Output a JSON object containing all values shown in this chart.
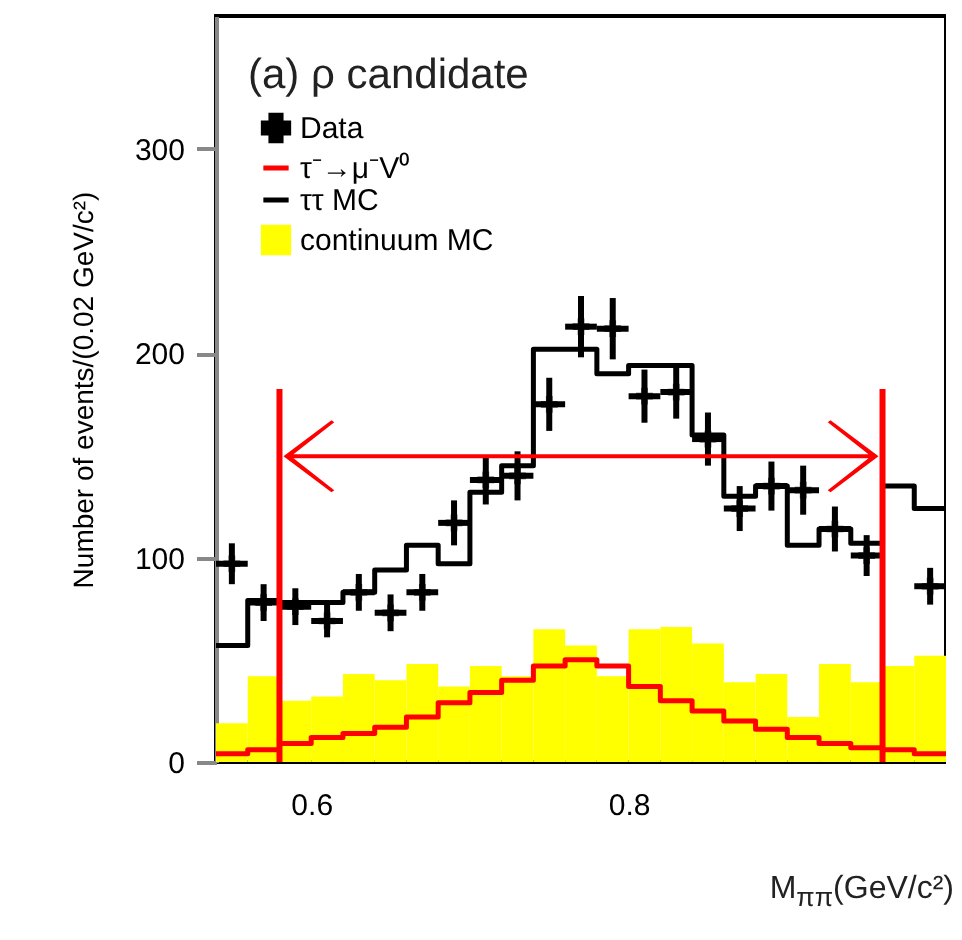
{
  "chart_data": {
    "type": "histogram",
    "title": "(a) ρ candidate",
    "xlabel": "M$_{ππ}$(GeV/c²)",
    "ylabel": "Number of events/(0.02 GeV/c²)",
    "bins": [
      0.54,
      0.56,
      0.58,
      0.6,
      0.62,
      0.64,
      0.66,
      0.68,
      0.7,
      0.72,
      0.74,
      0.76,
      0.78,
      0.8,
      0.82,
      0.84,
      0.86,
      0.88,
      0.9,
      0.92,
      0.94,
      0.96,
      0.98,
      1.0
    ],
    "xlim": [
      0.54,
      1.0
    ],
    "xticks": [
      0.6,
      0.8
    ],
    "ylim": [
      0,
      365
    ],
    "yticks": [
      0,
      100,
      200,
      300
    ],
    "legend": "top left",
    "series": [
      {
        "name": "Data",
        "type": "scatter",
        "color": "#000000",
        "marker": "cross",
        "x": [
          0.55,
          0.57,
          0.59,
          0.61,
          0.63,
          0.65,
          0.67,
          0.69,
          0.71,
          0.73,
          0.75,
          0.77,
          0.79,
          0.81,
          0.83,
          0.85,
          0.87,
          0.89,
          0.91,
          0.93,
          0.95,
          0.97,
          0.99
        ],
        "values": [
          97,
          78,
          76,
          69,
          83,
          73,
          83,
          117,
          138,
          140,
          175,
          213,
          212,
          179,
          181,
          158,
          124,
          135,
          133,
          114,
          101,
          null,
          86
        ],
        "errors": [
          10,
          9,
          9,
          8,
          9,
          9,
          9,
          11,
          12,
          12,
          13,
          15,
          15,
          13,
          13,
          13,
          11,
          12,
          12,
          11,
          10,
          null,
          9
        ],
        "xerrors": [
          0.01,
          0.01,
          0.01,
          0.01,
          0.01,
          0.01,
          0.01,
          0.01,
          0.01,
          0.01,
          0.01,
          0.01,
          0.01,
          0.01,
          0.01,
          0.01,
          0.01,
          0.01,
          0.01,
          0.01,
          0.01,
          null,
          0.01
        ]
      },
      {
        "name": "τ⁻→μ⁻V⁰",
        "type": "step",
        "color": "#ff0000",
        "x": [
          0.54,
          0.56,
          0.58,
          0.6,
          0.62,
          0.64,
          0.66,
          0.68,
          0.7,
          0.72,
          0.74,
          0.76,
          0.78,
          0.8,
          0.82,
          0.84,
          0.86,
          0.88,
          0.9,
          0.92,
          0.94,
          0.96,
          0.98,
          1.0
        ],
        "values": [
          4,
          6,
          9,
          12,
          14,
          17,
          22,
          29,
          34,
          40,
          47,
          50,
          47,
          37,
          30,
          25,
          20,
          16,
          12,
          9,
          7,
          6,
          4,
          4
        ]
      },
      {
        "name": "ττ MC",
        "type": "step",
        "color": "#000000",
        "x": [
          0.54,
          0.56,
          0.58,
          0.6,
          0.62,
          0.64,
          0.66,
          0.68,
          0.7,
          0.72,
          0.74,
          0.76,
          0.78,
          0.8,
          0.82,
          0.84,
          0.86,
          0.88,
          0.9,
          0.92,
          0.94,
          0.96,
          0.98,
          1.0
        ],
        "values": [
          57,
          79,
          78,
          78,
          83,
          94,
          106,
          97,
          132,
          145,
          202,
          202,
          190,
          194,
          194,
          160,
          130,
          135,
          106,
          114,
          107,
          135,
          124,
          124
        ]
      },
      {
        "name": "continuum MC",
        "type": "histogram",
        "color": "#ffff00",
        "values": [
          19,
          42,
          30,
          32,
          43,
          40,
          48,
          37,
          47,
          42,
          65,
          57,
          42,
          65,
          66,
          58,
          39,
          43,
          22,
          48,
          39,
          47,
          52
        ]
      }
    ],
    "ref_lines": [
      {
        "axis": "x",
        "value": 0.58,
        "color": "#ff0000"
      },
      {
        "axis": "x",
        "value": 0.96,
        "color": "#ff0000"
      }
    ]
  }
}
